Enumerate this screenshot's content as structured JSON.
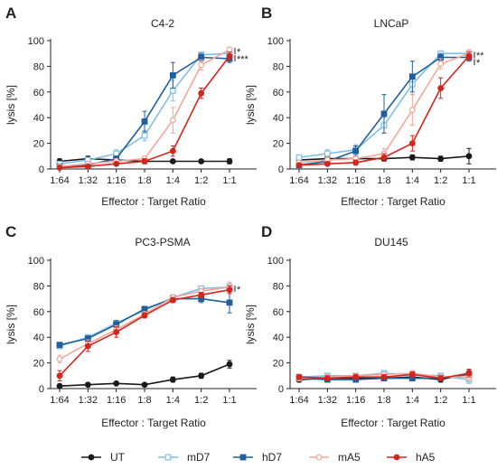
{
  "colors": {
    "UT": "#1a1a1a",
    "mD7": "#7fbfe8",
    "hD7": "#1f5f9e",
    "mA5": "#f2a89a",
    "hA5": "#d2261d"
  },
  "legend": [
    {
      "name": "UT",
      "marker": "circle"
    },
    {
      "name": "mD7",
      "marker": "square-open"
    },
    {
      "name": "hD7",
      "marker": "square"
    },
    {
      "name": "mA5",
      "marker": "circle-open"
    },
    {
      "name": "hA5",
      "marker": "circle"
    }
  ],
  "chart_data": [
    {
      "type": "line",
      "panel": "A",
      "title": "C4-2",
      "xlabel": "Effector : Target Ratio",
      "ylabel": "lysis [%]",
      "ylim": [
        0,
        100
      ],
      "yticks": [
        "0",
        "20",
        "40",
        "60",
        "80",
        "100"
      ],
      "categories": [
        "1:64",
        "1:32",
        "1:16",
        "1:8",
        "1:4",
        "1:2",
        "1:1"
      ],
      "significance": [
        "*",
        "***"
      ],
      "series": [
        {
          "name": "UT",
          "values": [
            6,
            8,
            7,
            6,
            6,
            6,
            6
          ],
          "errors": [
            2,
            2,
            2,
            1,
            1,
            1,
            2
          ]
        },
        {
          "name": "mD7",
          "values": [
            4,
            7,
            12,
            26,
            61,
            89,
            90
          ],
          "errors": [
            1,
            2,
            3,
            4,
            8,
            2,
            2
          ]
        },
        {
          "name": "hD7",
          "values": [
            2,
            3,
            8,
            37,
            73,
            87,
            86
          ],
          "errors": [
            1,
            1,
            2,
            8,
            10,
            3,
            3
          ]
        },
        {
          "name": "mA5",
          "values": [
            2,
            4,
            6,
            8,
            38,
            81,
            93
          ],
          "errors": [
            1,
            1,
            2,
            2,
            10,
            4,
            2
          ]
        },
        {
          "name": "hA5",
          "values": [
            1,
            2,
            4,
            6,
            14,
            59,
            88
          ],
          "errors": [
            1,
            1,
            1,
            2,
            4,
            4,
            3
          ]
        }
      ]
    },
    {
      "type": "line",
      "panel": "B",
      "title": "LNCaP",
      "xlabel": "Effector : Target Ratio",
      "ylabel": "lysis [%]",
      "ylim": [
        0,
        100
      ],
      "yticks": [
        "0",
        "20",
        "40",
        "60",
        "80",
        "100"
      ],
      "categories": [
        "1:64",
        "1:32",
        "1:16",
        "1:8",
        "1:4",
        "1:2",
        "1:1"
      ],
      "significance": [
        "**",
        "*"
      ],
      "series": [
        {
          "name": "UT",
          "values": [
            7,
            8,
            8,
            8,
            9,
            8,
            10
          ],
          "errors": [
            2,
            2,
            2,
            2,
            2,
            2,
            6
          ]
        },
        {
          "name": "mD7",
          "values": [
            9,
            12,
            15,
            34,
            66,
            90,
            90
          ],
          "errors": [
            2,
            3,
            4,
            6,
            8,
            2,
            2
          ]
        },
        {
          "name": "hD7",
          "values": [
            3,
            6,
            14,
            43,
            72,
            87,
            87
          ],
          "errors": [
            1,
            2,
            4,
            15,
            12,
            3,
            3
          ]
        },
        {
          "name": "mA5",
          "values": [
            5,
            7,
            8,
            12,
            46,
            82,
            90
          ],
          "errors": [
            1,
            2,
            2,
            4,
            12,
            4,
            3
          ]
        },
        {
          "name": "hA5",
          "values": [
            3,
            4,
            5,
            9,
            20,
            63,
            88
          ],
          "errors": [
            1,
            1,
            2,
            3,
            6,
            8,
            3
          ]
        }
      ]
    },
    {
      "type": "line",
      "panel": "C",
      "title": "PC3-PSMA",
      "xlabel": "Effector : Target Ratio",
      "ylabel": "lysis [%]",
      "ylim": [
        0,
        100
      ],
      "yticks": [
        "0",
        "20",
        "40",
        "60",
        "80",
        "100"
      ],
      "categories": [
        "1:64",
        "1:32",
        "1:16",
        "1:8",
        "1:4",
        "1:2",
        "1:1"
      ],
      "significance": [
        "*"
      ],
      "series": [
        {
          "name": "UT",
          "values": [
            2,
            3,
            4,
            3,
            7,
            10,
            19
          ],
          "errors": [
            1,
            1,
            1,
            1,
            2,
            2,
            3
          ]
        },
        {
          "name": "mD7",
          "values": [
            33,
            40,
            51,
            61,
            71,
            78,
            79
          ],
          "errors": [
            2,
            2,
            2,
            2,
            2,
            2,
            3
          ]
        },
        {
          "name": "hD7",
          "values": [
            34,
            39,
            50,
            62,
            70,
            70,
            67
          ],
          "errors": [
            2,
            2,
            3,
            2,
            2,
            3,
            8
          ]
        },
        {
          "name": "mA5",
          "values": [
            23,
            35,
            46,
            58,
            71,
            76,
            79
          ],
          "errors": [
            3,
            3,
            3,
            2,
            2,
            2,
            4
          ]
        },
        {
          "name": "hA5",
          "values": [
            10,
            33,
            44,
            57,
            69,
            73,
            77
          ],
          "errors": [
            4,
            4,
            4,
            2,
            2,
            2,
            3
          ]
        }
      ]
    },
    {
      "type": "line",
      "panel": "D",
      "title": "DU145",
      "xlabel": "Effector : Target Ratio",
      "ylabel": "lysis [%]",
      "ylim": [
        0,
        100
      ],
      "yticks": [
        "0",
        "20",
        "40",
        "60",
        "80",
        "100"
      ],
      "categories": [
        "1:64",
        "1:32",
        "1:16",
        "1:8",
        "1:4",
        "1:2",
        "1:1"
      ],
      "significance": [],
      "series": [
        {
          "name": "UT",
          "values": [
            7,
            8,
            8,
            8,
            9,
            7,
            12
          ],
          "errors": [
            2,
            2,
            2,
            2,
            2,
            2,
            3
          ]
        },
        {
          "name": "mD7",
          "values": [
            9,
            10,
            10,
            12,
            11,
            10,
            7
          ],
          "errors": [
            2,
            2,
            2,
            2,
            2,
            2,
            3
          ]
        },
        {
          "name": "hD7",
          "values": [
            8,
            7,
            7,
            8,
            8,
            8,
            11
          ],
          "errors": [
            2,
            2,
            2,
            2,
            2,
            2,
            3
          ]
        },
        {
          "name": "mA5",
          "values": [
            8,
            9,
            10,
            11,
            12,
            9,
            9
          ],
          "errors": [
            2,
            2,
            2,
            2,
            2,
            2,
            3
          ]
        },
        {
          "name": "hA5",
          "values": [
            9,
            8,
            9,
            9,
            11,
            8,
            12
          ],
          "errors": [
            2,
            2,
            2,
            2,
            2,
            2,
            3
          ]
        }
      ]
    }
  ]
}
